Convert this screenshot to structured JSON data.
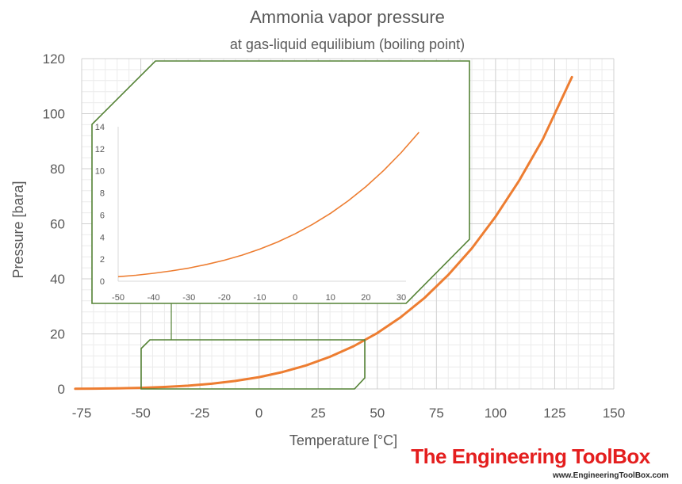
{
  "chart_data": [
    {
      "type": "line",
      "title": "Ammonia vapor pressure",
      "subtitle": "at gas-liquid equilibium (boiling point)",
      "xlabel": "Temperature [°C]",
      "ylabel": "Pressure [bara]",
      "xlim": [
        -75,
        150
      ],
      "ylim": [
        0,
        120
      ],
      "xticks": [
        "-75",
        "-50",
        "-25",
        "0",
        "25",
        "50",
        "75",
        "100",
        "125",
        "150"
      ],
      "yticks": [
        "0",
        "20",
        "40",
        "60",
        "80",
        "100",
        "120"
      ],
      "grid": true,
      "series": [
        {
          "x": [
            -77.7,
            -70,
            -60,
            -50,
            -40,
            -33.6,
            -30,
            -20,
            -10,
            0,
            10,
            20,
            30,
            40,
            50,
            60,
            70,
            80,
            90,
            100,
            110,
            120,
            132.3
          ],
          "y": [
            0.06,
            0.11,
            0.22,
            0.41,
            0.72,
            1.01,
            1.19,
            1.9,
            2.91,
            4.29,
            6.15,
            8.57,
            11.67,
            15.54,
            20.33,
            26.14,
            33.1,
            41.4,
            51.1,
            62.6,
            75.7,
            90.7,
            113.3
          ],
          "color": "#ed7d31"
        }
      ],
      "color": "#ed7d31"
    },
    {
      "type": "line",
      "xlim": [
        -50,
        30
      ],
      "ylim": [
        0,
        14
      ],
      "xticks": [
        "-50",
        "-40",
        "-30",
        "-20",
        "-10",
        "0",
        "10",
        "20",
        "30"
      ],
      "yticks": [
        "0",
        "2",
        "4",
        "6",
        "8",
        "10",
        "12",
        "14"
      ],
      "grid": false,
      "series": [
        {
          "x": [
            -50,
            -45,
            -40,
            -35,
            -30,
            -25,
            -20,
            -15,
            -10,
            -5,
            0,
            5,
            10,
            15,
            20,
            25,
            30,
            35
          ],
          "y": [
            0.41,
            0.54,
            0.72,
            0.93,
            1.19,
            1.52,
            1.9,
            2.36,
            2.91,
            3.55,
            4.29,
            5.16,
            6.15,
            7.29,
            8.57,
            10.03,
            11.67,
            13.5
          ],
          "color": "#ed7d31"
        }
      ],
      "frame_color": "#548235"
    }
  ],
  "brand": {
    "name": "The Engineering ToolBox",
    "url": "www.EngineeringToolBox.com"
  }
}
